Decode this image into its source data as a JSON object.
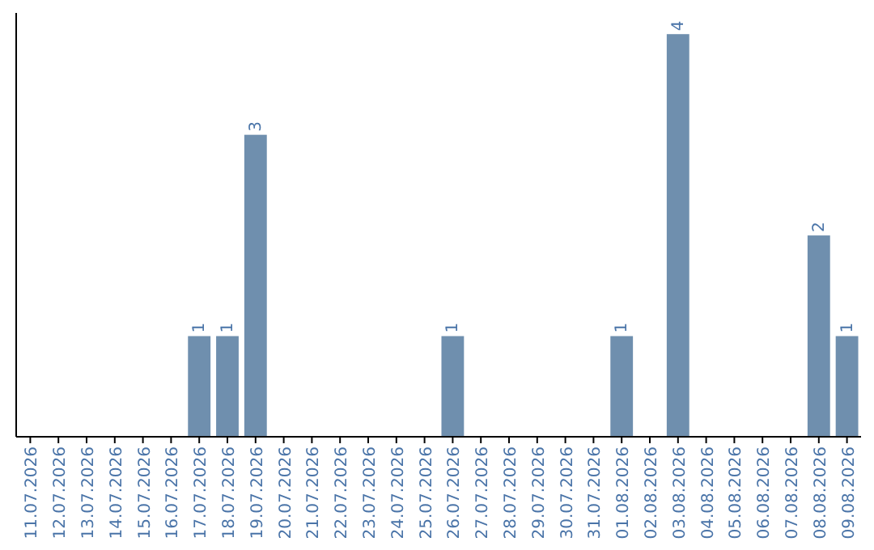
{
  "chart_data": {
    "type": "bar",
    "categories": [
      "11.07.2026",
      "12.07.2026",
      "13.07.2026",
      "14.07.2026",
      "15.07.2026",
      "16.07.2026",
      "17.07.2026",
      "18.07.2026",
      "19.07.2026",
      "20.07.2026",
      "21.07.2026",
      "22.07.2026",
      "23.07.2026",
      "24.07.2026",
      "25.07.2026",
      "26.07.2026",
      "27.07.2026",
      "28.07.2026",
      "29.07.2026",
      "30.07.2026",
      "31.07.2026",
      "01.08.2026",
      "02.08.2026",
      "03.08.2026",
      "04.08.2026",
      "05.08.2026",
      "06.08.2026",
      "07.08.2026",
      "08.08.2026",
      "09.08.2026"
    ],
    "values": [
      0,
      0,
      0,
      0,
      0,
      0,
      1,
      1,
      3,
      0,
      0,
      0,
      0,
      0,
      0,
      1,
      0,
      0,
      0,
      0,
      0,
      1,
      0,
      4,
      0,
      0,
      0,
      0,
      2,
      1
    ],
    "value_labels": [
      null,
      null,
      null,
      null,
      null,
      null,
      "1",
      "1",
      "3",
      null,
      null,
      null,
      null,
      null,
      null,
      "1",
      null,
      null,
      null,
      null,
      null,
      "1",
      null,
      "4",
      null,
      null,
      null,
      null,
      "2",
      "1"
    ],
    "color": "#6f8fae",
    "relative": false
  }
}
